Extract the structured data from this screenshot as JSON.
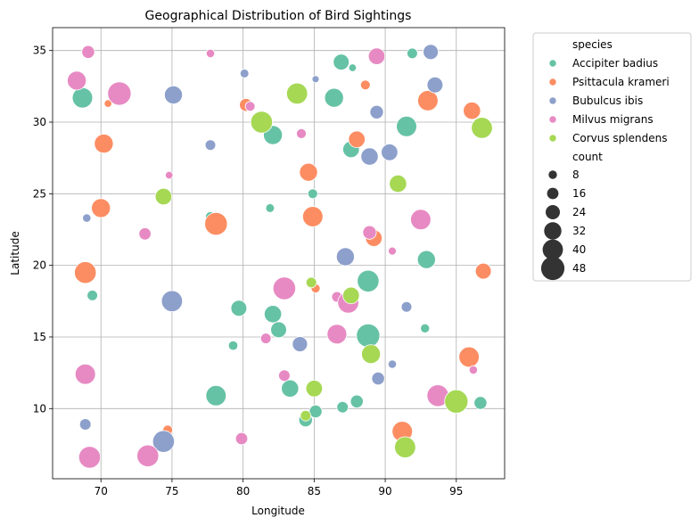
{
  "chart_data": {
    "type": "scatter",
    "title": "Geographical Distribution of Bird Sightings",
    "xlabel": "Longitude",
    "ylabel": "Latitude",
    "xlim": [
      66.6,
      98.4
    ],
    "ylim": [
      5.1,
      36.6
    ],
    "xticks": [
      70,
      75,
      80,
      85,
      90,
      95
    ],
    "yticks": [
      10,
      15,
      20,
      25,
      30,
      35
    ],
    "grid": true,
    "legend": {
      "position": "outside-right",
      "hue_title": "species",
      "size_title": "count",
      "size_levels": [
        8,
        16,
        24,
        32,
        40,
        48
      ]
    },
    "series": [
      {
        "name": "Accipiter badius",
        "color": "#66c2a5",
        "points": [
          {
            "x": 68.7,
            "y": 31.7,
            "count": 40
          },
          {
            "x": 69.4,
            "y": 17.9,
            "count": 14
          },
          {
            "x": 77.7,
            "y": 23.4,
            "count": 12
          },
          {
            "x": 78.1,
            "y": 10.9,
            "count": 40
          },
          {
            "x": 79.3,
            "y": 14.4,
            "count": 11
          },
          {
            "x": 79.7,
            "y": 17.0,
            "count": 28
          },
          {
            "x": 81.9,
            "y": 24.0,
            "count": 9
          },
          {
            "x": 82.1,
            "y": 29.1,
            "count": 36
          },
          {
            "x": 82.1,
            "y": 16.6,
            "count": 32
          },
          {
            "x": 82.5,
            "y": 15.5,
            "count": 28
          },
          {
            "x": 83.3,
            "y": 11.4,
            "count": 32
          },
          {
            "x": 84.4,
            "y": 9.2,
            "count": 22
          },
          {
            "x": 84.9,
            "y": 25.0,
            "count": 12
          },
          {
            "x": 85.1,
            "y": 9.8,
            "count": 20
          },
          {
            "x": 86.4,
            "y": 31.7,
            "count": 36
          },
          {
            "x": 86.9,
            "y": 34.2,
            "count": 28
          },
          {
            "x": 87.0,
            "y": 10.1,
            "count": 16
          },
          {
            "x": 87.6,
            "y": 28.1,
            "count": 30
          },
          {
            "x": 87.7,
            "y": 33.8,
            "count": 6
          },
          {
            "x": 88.0,
            "y": 10.5,
            "count": 20
          },
          {
            "x": 88.8,
            "y": 15.1,
            "count": 48
          },
          {
            "x": 88.8,
            "y": 18.9,
            "count": 44
          },
          {
            "x": 91.5,
            "y": 29.7,
            "count": 40
          },
          {
            "x": 91.9,
            "y": 34.8,
            "count": 14
          },
          {
            "x": 92.8,
            "y": 15.6,
            "count": 10
          },
          {
            "x": 92.9,
            "y": 20.4,
            "count": 34
          },
          {
            "x": 96.7,
            "y": 10.4,
            "count": 20
          }
        ]
      },
      {
        "name": "Psittacula krameri",
        "color": "#fc8d62",
        "points": [
          {
            "x": 68.9,
            "y": 19.5,
            "count": 44
          },
          {
            "x": 70.0,
            "y": 24.0,
            "count": 36
          },
          {
            "x": 70.2,
            "y": 28.5,
            "count": 36
          },
          {
            "x": 70.5,
            "y": 31.3,
            "count": 6
          },
          {
            "x": 73.5,
            "y": 6.8,
            "count": 14
          },
          {
            "x": 74.7,
            "y": 8.5,
            "count": 12
          },
          {
            "x": 78.1,
            "y": 22.9,
            "count": 46
          },
          {
            "x": 80.2,
            "y": 31.2,
            "count": 20
          },
          {
            "x": 84.6,
            "y": 26.5,
            "count": 34
          },
          {
            "x": 84.9,
            "y": 23.4,
            "count": 40
          },
          {
            "x": 85.1,
            "y": 18.4,
            "count": 10
          },
          {
            "x": 88.0,
            "y": 28.8,
            "count": 30
          },
          {
            "x": 88.6,
            "y": 32.6,
            "count": 12
          },
          {
            "x": 89.2,
            "y": 21.9,
            "count": 30
          },
          {
            "x": 91.2,
            "y": 8.4,
            "count": 40
          },
          {
            "x": 93.0,
            "y": 31.5,
            "count": 40
          },
          {
            "x": 95.9,
            "y": 13.6,
            "count": 40
          },
          {
            "x": 96.1,
            "y": 30.8,
            "count": 32
          },
          {
            "x": 96.9,
            "y": 19.6,
            "count": 28
          }
        ]
      },
      {
        "name": "Bubulcus ibis",
        "color": "#8da0cb",
        "points": [
          {
            "x": 68.9,
            "y": 8.9,
            "count": 16
          },
          {
            "x": 69.0,
            "y": 23.3,
            "count": 8
          },
          {
            "x": 74.4,
            "y": 7.7,
            "count": 44
          },
          {
            "x": 75.1,
            "y": 31.9,
            "count": 34
          },
          {
            "x": 75.0,
            "y": 17.5,
            "count": 42
          },
          {
            "x": 77.7,
            "y": 28.4,
            "count": 14
          },
          {
            "x": 80.1,
            "y": 33.4,
            "count": 9
          },
          {
            "x": 84.0,
            "y": 14.5,
            "count": 26
          },
          {
            "x": 85.1,
            "y": 33.0,
            "count": 5
          },
          {
            "x": 87.2,
            "y": 20.6,
            "count": 34
          },
          {
            "x": 88.9,
            "y": 27.6,
            "count": 32
          },
          {
            "x": 89.4,
            "y": 30.7,
            "count": 22
          },
          {
            "x": 89.5,
            "y": 12.1,
            "count": 20
          },
          {
            "x": 90.3,
            "y": 27.9,
            "count": 30
          },
          {
            "x": 90.5,
            "y": 13.1,
            "count": 8
          },
          {
            "x": 91.5,
            "y": 17.1,
            "count": 14
          },
          {
            "x": 93.2,
            "y": 34.9,
            "count": 26
          },
          {
            "x": 93.5,
            "y": 32.6,
            "count": 28
          }
        ]
      },
      {
        "name": "Milvus migrans",
        "color": "#e78ac3",
        "points": [
          {
            "x": 68.3,
            "y": 32.9,
            "count": 36
          },
          {
            "x": 68.9,
            "y": 12.4,
            "count": 40
          },
          {
            "x": 69.1,
            "y": 34.9,
            "count": 20
          },
          {
            "x": 69.2,
            "y": 6.6,
            "count": 44
          },
          {
            "x": 71.3,
            "y": 32.0,
            "count": 48
          },
          {
            "x": 73.1,
            "y": 22.2,
            "count": 18
          },
          {
            "x": 73.3,
            "y": 6.7,
            "count": 44
          },
          {
            "x": 74.8,
            "y": 26.3,
            "count": 6
          },
          {
            "x": 77.7,
            "y": 34.8,
            "count": 8
          },
          {
            "x": 79.9,
            "y": 7.9,
            "count": 18
          },
          {
            "x": 80.5,
            "y": 31.1,
            "count": 12
          },
          {
            "x": 81.6,
            "y": 14.9,
            "count": 14
          },
          {
            "x": 82.9,
            "y": 18.4,
            "count": 46
          },
          {
            "x": 82.9,
            "y": 12.3,
            "count": 16
          },
          {
            "x": 84.1,
            "y": 29.2,
            "count": 12
          },
          {
            "x": 86.6,
            "y": 17.8,
            "count": 14
          },
          {
            "x": 86.6,
            "y": 15.2,
            "count": 38
          },
          {
            "x": 87.4,
            "y": 17.4,
            "count": 42
          },
          {
            "x": 88.9,
            "y": 22.3,
            "count": 22
          },
          {
            "x": 89.4,
            "y": 34.6,
            "count": 30
          },
          {
            "x": 90.5,
            "y": 21.0,
            "count": 7
          },
          {
            "x": 92.5,
            "y": 23.2,
            "count": 40
          },
          {
            "x": 93.7,
            "y": 10.9,
            "count": 44
          },
          {
            "x": 96.2,
            "y": 12.7,
            "count": 8
          }
        ]
      },
      {
        "name": "Corvus splendens",
        "color": "#a6d854",
        "points": [
          {
            "x": 74.4,
            "y": 24.8,
            "count": 30
          },
          {
            "x": 81.3,
            "y": 30.0,
            "count": 44
          },
          {
            "x": 83.8,
            "y": 32.0,
            "count": 42
          },
          {
            "x": 84.4,
            "y": 9.5,
            "count": 14
          },
          {
            "x": 84.8,
            "y": 18.8,
            "count": 14
          },
          {
            "x": 85.0,
            "y": 11.4,
            "count": 30
          },
          {
            "x": 87.6,
            "y": 17.9,
            "count": 30
          },
          {
            "x": 89.0,
            "y": 13.8,
            "count": 36
          },
          {
            "x": 90.9,
            "y": 25.7,
            "count": 32
          },
          {
            "x": 91.4,
            "y": 7.3,
            "count": 42
          },
          {
            "x": 95.0,
            "y": 10.5,
            "count": 48
          },
          {
            "x": 96.8,
            "y": 29.6,
            "count": 42
          }
        ]
      }
    ]
  }
}
